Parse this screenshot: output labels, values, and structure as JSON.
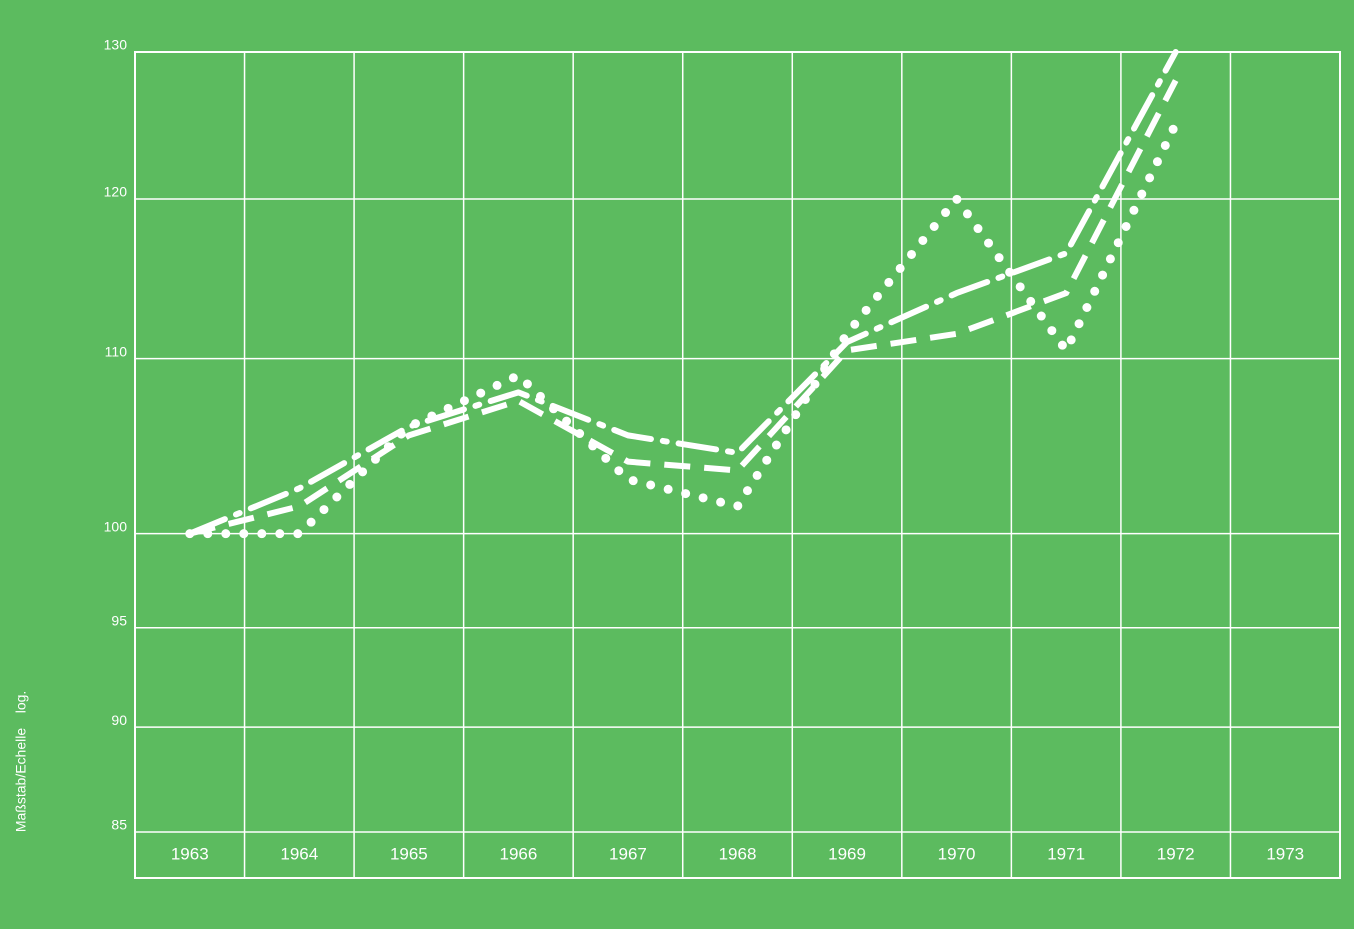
{
  "chart_data": {
    "type": "line",
    "y_label": "Maßstab/Echelle",
    "y_scale_label": "log.",
    "log_scale": true,
    "grid": true,
    "categories": [
      "1963",
      "1964",
      "1965",
      "1966",
      "1967",
      "1968",
      "1969",
      "1970",
      "1971",
      "1972",
      "1973"
    ],
    "series": [
      {
        "color": "#ffffff",
        "style": "dash-dot",
        "values": [
          100,
          102.5,
          106,
          108,
          105.5,
          104.5,
          111,
          114,
          116.5,
          130,
          null
        ]
      },
      {
        "color": "#ffffff",
        "style": "dashed",
        "values": [
          100,
          101.5,
          105.5,
          107.5,
          104,
          103.5,
          110.5,
          111.5,
          114,
          128,
          null
        ]
      },
      {
        "color": "#ffffff",
        "style": "dotted",
        "values": [
          100,
          100,
          106,
          109,
          103,
          101.5,
          111.5,
          120,
          110.5,
          125,
          null
        ]
      }
    ],
    "ylim": [
      85,
      130
    ],
    "yticks": [
      85,
      90,
      95,
      100,
      110,
      120,
      130
    ]
  }
}
